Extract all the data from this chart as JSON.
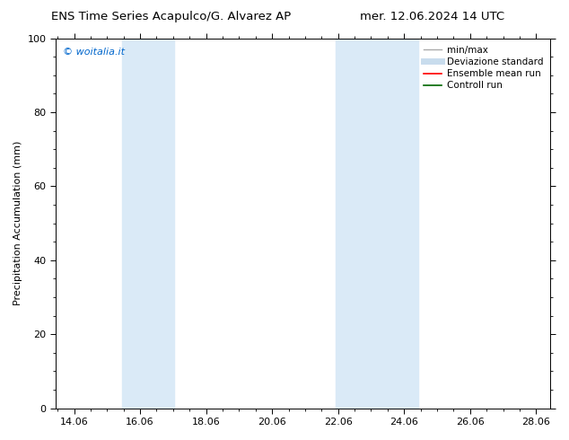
{
  "title_left": "ENS Time Series Acapulco/G. Alvarez AP",
  "title_right": "mer. 12.06.2024 14 UTC",
  "ylabel": "Precipitation Accumulation (mm)",
  "xlim": [
    13.5,
    28.5
  ],
  "ylim": [
    0,
    100
  ],
  "yticks": [
    0,
    20,
    40,
    60,
    80,
    100
  ],
  "xtick_positions": [
    14.06,
    16.06,
    18.06,
    20.06,
    22.06,
    24.06,
    26.06,
    28.06
  ],
  "xtick_labels": [
    "14.06",
    "16.06",
    "18.06",
    "20.06",
    "22.06",
    "24.06",
    "26.06",
    "28.06"
  ],
  "bg_color": "#ffffff",
  "plot_bg_color": "#ffffff",
  "band1_x0": 15.5,
  "band1_x1": 17.1,
  "band2_x0": 22.0,
  "band2_x1": 24.5,
  "band_color": "#daeaf7",
  "watermark_text": "© woitalia.it",
  "watermark_color": "#0066cc",
  "legend_items": [
    {
      "label": "min/max",
      "color": "#aaaaaa",
      "linewidth": 1.0,
      "linestyle": "-"
    },
    {
      "label": "Deviazione standard",
      "color": "#c8dced",
      "linewidth": 5,
      "linestyle": "-"
    },
    {
      "label": "Ensemble mean run",
      "color": "#ff0000",
      "linewidth": 1.2,
      "linestyle": "-"
    },
    {
      "label": "Controll run",
      "color": "#006600",
      "linewidth": 1.2,
      "linestyle": "-"
    }
  ],
  "title_fontsize": 9.5,
  "ylabel_fontsize": 8,
  "tick_fontsize": 8,
  "legend_fontsize": 7.5,
  "watermark_fontsize": 8
}
